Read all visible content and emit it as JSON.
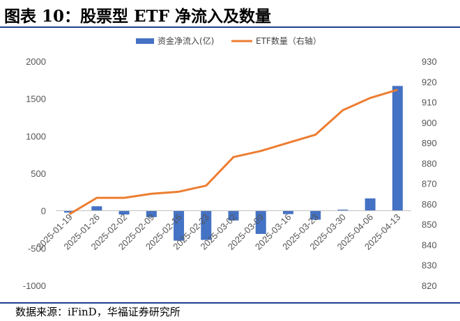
{
  "title": "图表 10：股票型 ETF 净流入及数量",
  "source": "数据来源：iFinD，华福证券研究所",
  "chart_data": {
    "type": "bar+line",
    "categories": [
      "2025-01-19",
      "2025-01-26",
      "2025-02-02",
      "2025-02-09",
      "2025-02-16",
      "2025-02-23",
      "2025-03-02",
      "2025-03-09",
      "2025-03-16",
      "2025-03-23",
      "2025-03-30",
      "2025-04-06",
      "2025-04-13"
    ],
    "series": [
      {
        "name": "资金净流入(亿)",
        "type": "bar",
        "axis": "left",
        "color": "#4472C4",
        "values": [
          -25,
          60,
          -50,
          -85,
          -400,
          -390,
          -130,
          -310,
          -45,
          -120,
          15,
          165,
          1670
        ]
      },
      {
        "name": "ETF数量（右轴）",
        "type": "line",
        "axis": "right",
        "color": "#ED7D31",
        "values": [
          855,
          863,
          863,
          865,
          866,
          869,
          883,
          886,
          890,
          894,
          906,
          912,
          916
        ]
      }
    ],
    "ylim_left": [
      -1000,
      2000
    ],
    "yticks_left": [
      "2000",
      "1500",
      "1000",
      "500",
      "0",
      "-500",
      "-1000"
    ],
    "ylim_right": [
      820,
      930
    ],
    "yticks_right": [
      "930",
      "920",
      "910",
      "900",
      "890",
      "880",
      "870",
      "860",
      "850",
      "840",
      "830",
      "820"
    ],
    "legend_position": "top-center",
    "grid": false
  }
}
